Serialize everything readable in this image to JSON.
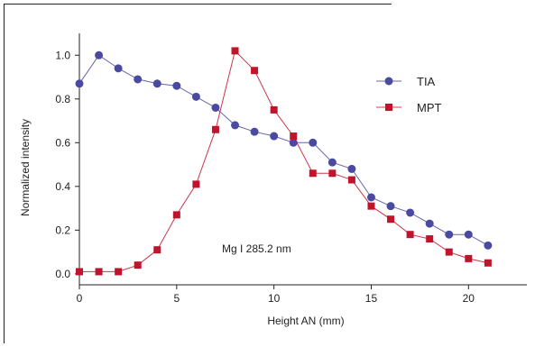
{
  "chart_data": {
    "type": "line",
    "xlabel": "Height AN (mm)",
    "ylabel": "Normalized intensity",
    "xlim": [
      0,
      23
    ],
    "ylim": [
      -0.05,
      1.1
    ],
    "x_ticks": [
      0,
      5,
      10,
      15,
      20
    ],
    "x_tick_labels": [
      "0",
      "5",
      "10",
      "15",
      "20"
    ],
    "y_ticks": [
      0.0,
      0.2,
      0.4,
      0.6,
      0.8,
      1.0
    ],
    "y_tick_labels": [
      "0.0",
      "0.2",
      "0.4",
      "0.6",
      "0.8",
      "1.0"
    ],
    "annotation": "Mg I 285.2 nm",
    "legend_position": "top-right",
    "grid": false,
    "series": [
      {
        "name": "TIA",
        "color": "#4a4aa0",
        "marker": "circle",
        "x": [
          0,
          1,
          2,
          3,
          4,
          5,
          6,
          7,
          8,
          9,
          10,
          11,
          12,
          13,
          14,
          15,
          16,
          17,
          18,
          19,
          20,
          21
        ],
        "y": [
          0.87,
          1.0,
          0.94,
          0.89,
          0.87,
          0.86,
          0.81,
          0.76,
          0.68,
          0.65,
          0.63,
          0.6,
          0.6,
          0.51,
          0.48,
          0.35,
          0.31,
          0.28,
          0.23,
          0.18,
          0.18,
          0.13
        ]
      },
      {
        "name": "MPT",
        "color": "#c0142c",
        "marker": "square",
        "x": [
          0,
          1,
          2,
          3,
          4,
          5,
          6,
          7,
          8,
          9,
          10,
          11,
          12,
          13,
          14,
          15,
          16,
          17,
          18,
          19,
          20,
          21
        ],
        "y": [
          0.01,
          0.01,
          0.01,
          0.04,
          0.11,
          0.27,
          0.41,
          0.66,
          1.02,
          0.93,
          0.75,
          0.63,
          0.46,
          0.46,
          0.43,
          0.31,
          0.25,
          0.18,
          0.16,
          0.1,
          0.07,
          0.05
        ]
      }
    ]
  }
}
